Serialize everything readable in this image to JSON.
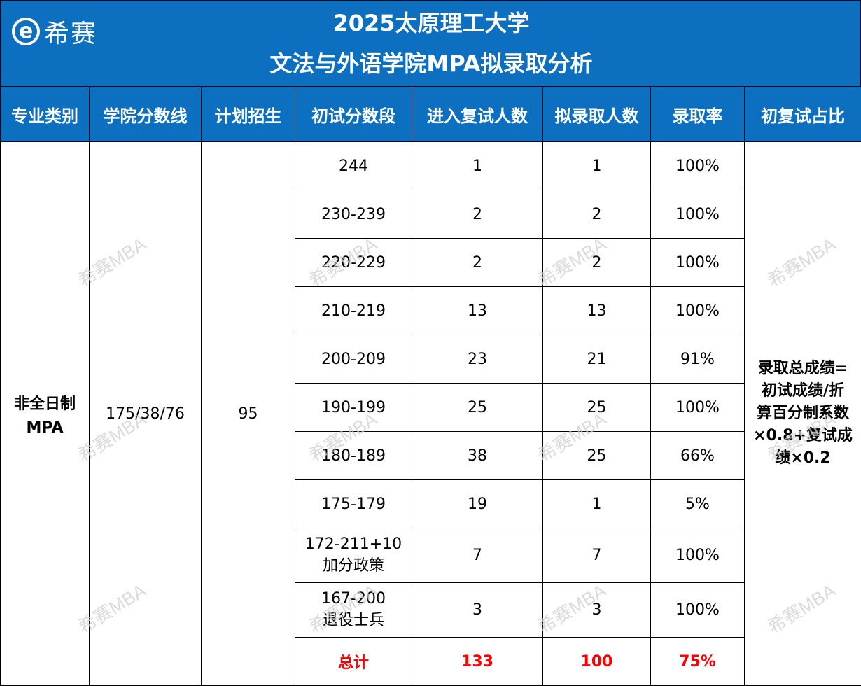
{
  "header": {
    "logo_mark": "e",
    "logo_text": "希赛",
    "title_line1": "2025太原理工大学",
    "title_line2": "文法与外语学院MPA拟录取分析"
  },
  "columns": [
    "专业类别",
    "学院分数线",
    "计划招生",
    "初试分数段",
    "进入复试人数",
    "拟录取人数",
    "录取率",
    "初复试占比"
  ],
  "program": {
    "category_line1": "非全日制",
    "category_line2": "MPA",
    "cutoff": "175/38/76",
    "plan": "95"
  },
  "rows": [
    {
      "range": "244",
      "range2": "",
      "retest": "1",
      "admit": "1",
      "rate": "100%"
    },
    {
      "range": "230-239",
      "range2": "",
      "retest": "2",
      "admit": "2",
      "rate": "100%"
    },
    {
      "range": "220-229",
      "range2": "",
      "retest": "2",
      "admit": "2",
      "rate": "100%"
    },
    {
      "range": "210-219",
      "range2": "",
      "retest": "13",
      "admit": "13",
      "rate": "100%"
    },
    {
      "range": "200-209",
      "range2": "",
      "retest": "23",
      "admit": "21",
      "rate": "91%"
    },
    {
      "range": "190-199",
      "range2": "",
      "retest": "25",
      "admit": "25",
      "rate": "100%"
    },
    {
      "range": "180-189",
      "range2": "",
      "retest": "38",
      "admit": "25",
      "rate": "66%"
    },
    {
      "range": "175-179",
      "range2": "",
      "retest": "19",
      "admit": "1",
      "rate": "5%"
    },
    {
      "range": "172-211+10",
      "range2": "加分政策",
      "retest": "7",
      "admit": "7",
      "rate": "100%"
    },
    {
      "range": "167-200",
      "range2": "退役士兵",
      "retest": "3",
      "admit": "3",
      "rate": "100%"
    }
  ],
  "total": {
    "label": "总计",
    "retest": "133",
    "admit": "100",
    "rate": "75%"
  },
  "ratio_note": [
    "录取总成绩=",
    "初试成绩/折",
    "算百分制系数",
    "×0.8+复试成",
    "绩×0.2"
  ],
  "watermark": "希赛MBA",
  "colors": {
    "header_blue": "#0d6fc0",
    "total_red": "#ff0000"
  }
}
